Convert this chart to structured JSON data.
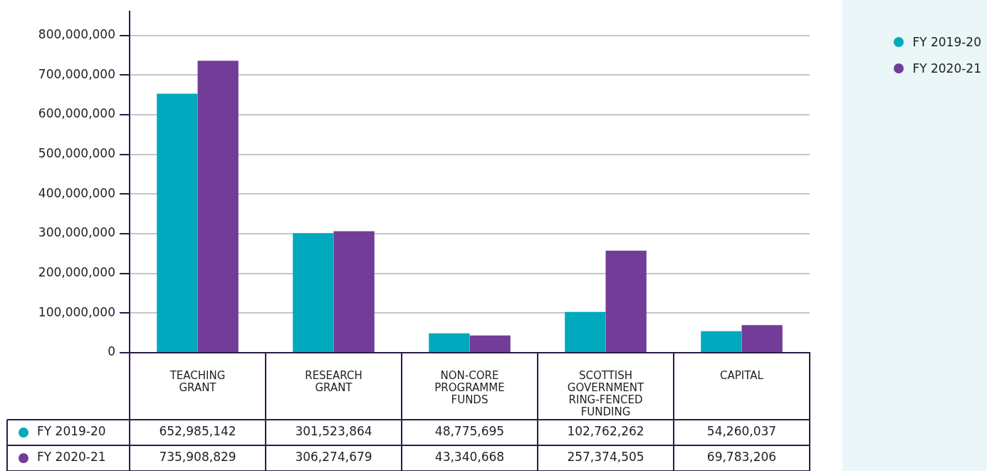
{
  "chart_data": {
    "type": "bar",
    "categories": [
      "TEACHING GRANT",
      "RESEARCH GRANT",
      "NON-CORE PROGRAMME FUNDS",
      "SCOTTISH GOVERNMENT RING-FENCED FUNDING",
      "CAPITAL"
    ],
    "series": [
      {
        "name": "FY 2019-20",
        "color": "#00a9bd",
        "values": [
          652985142,
          301523864,
          48775695,
          102762262,
          54260037
        ],
        "value_labels": [
          "652,985,142",
          "301,523,864",
          "48,775,695",
          "102,762,262",
          "54,260,037"
        ]
      },
      {
        "name": "FY 2020-21",
        "color": "#723d98",
        "values": [
          735908829,
          306274679,
          43340668,
          257374505,
          69783206
        ],
        "value_labels": [
          "735,908,829",
          "306,274,679",
          "43,340,668",
          "257,374,505",
          "69,783,206"
        ]
      }
    ],
    "ylim": [
      0,
      860000000
    ],
    "yticks": [
      {
        "value": 0,
        "label": "0"
      },
      {
        "value": 100000000,
        "label": "100,000,000"
      },
      {
        "value": 200000000,
        "label": "200,000,000"
      },
      {
        "value": 300000000,
        "label": "300,000,000"
      },
      {
        "value": 400000000,
        "label": "400,000,000"
      },
      {
        "value": 500000000,
        "label": "500,000,000"
      },
      {
        "value": 600000000,
        "label": "600,000,000"
      },
      {
        "value": 700000000,
        "label": "700,000,000"
      },
      {
        "value": 800000000,
        "label": "800,000,000"
      }
    ],
    "grid": "y",
    "legend": "right"
  }
}
